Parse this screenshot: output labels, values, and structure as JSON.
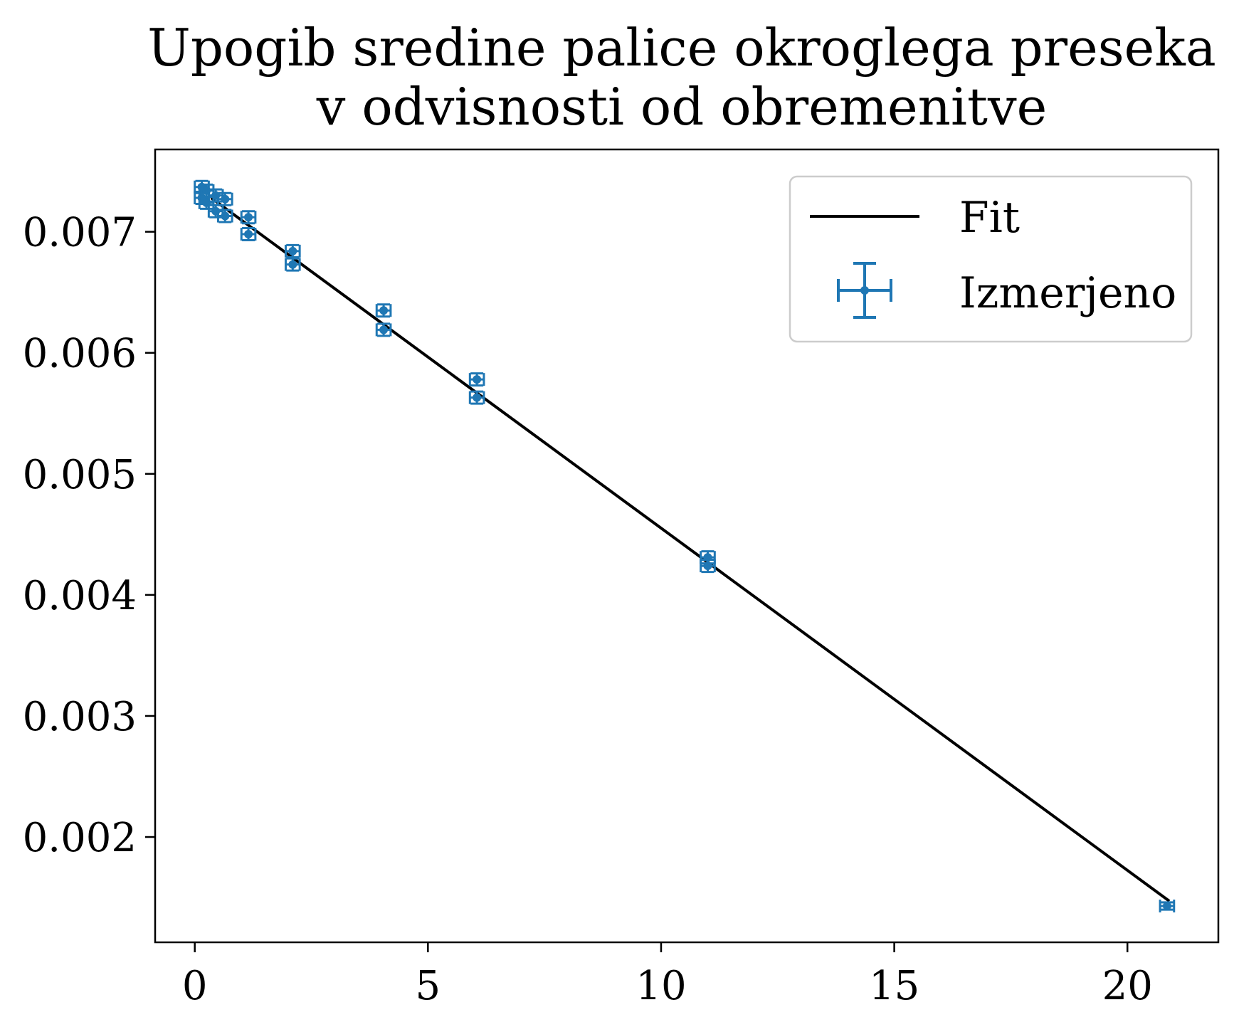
{
  "chart_data": {
    "type": "scatter",
    "title_lines": [
      "Upogib sredine palice okroglega preseka",
      "v odvisnosti od obremenitve"
    ],
    "xlabel": "",
    "ylabel": "",
    "xlim": [
      -0.85,
      21.95
    ],
    "ylim": [
      0.00113,
      0.00768
    ],
    "x_ticks": [
      0,
      5,
      10,
      15,
      20
    ],
    "x_tick_labels": [
      "0",
      "5",
      "10",
      "15",
      "20"
    ],
    "y_ticks": [
      0.002,
      0.003,
      0.004,
      0.005,
      0.006,
      0.007
    ],
    "y_tick_labels": [
      "0.002",
      "0.003",
      "0.004",
      "0.005",
      "0.006",
      "0.007"
    ],
    "grid": false,
    "legend": {
      "placement": "top-right",
      "entries": [
        "Fit",
        "Izmerjeno"
      ]
    },
    "fit": {
      "name": "Fit",
      "color": "#000000",
      "x": [
        0.35,
        20.9
      ],
      "y": [
        0.00728,
        0.00147
      ]
    },
    "measured": {
      "name": "Izmerjeno",
      "color": "#1f77b4",
      "points": [
        {
          "x": 0.15,
          "y": 0.00737,
          "xerr": 0.15,
          "yerr": 5e-05
        },
        {
          "x": 0.15,
          "y": 0.00728,
          "xerr": 0.15,
          "yerr": 5e-05
        },
        {
          "x": 0.25,
          "y": 0.00734,
          "xerr": 0.15,
          "yerr": 5e-05
        },
        {
          "x": 0.25,
          "y": 0.00724,
          "xerr": 0.15,
          "yerr": 5e-05
        },
        {
          "x": 0.45,
          "y": 0.0073,
          "xerr": 0.15,
          "yerr": 5e-05
        },
        {
          "x": 0.45,
          "y": 0.00717,
          "xerr": 0.15,
          "yerr": 5e-05
        },
        {
          "x": 0.65,
          "y": 0.00727,
          "xerr": 0.15,
          "yerr": 5e-05
        },
        {
          "x": 0.65,
          "y": 0.00713,
          "xerr": 0.15,
          "yerr": 5e-05
        },
        {
          "x": 1.15,
          "y": 0.00712,
          "xerr": 0.15,
          "yerr": 5e-05
        },
        {
          "x": 1.15,
          "y": 0.00698,
          "xerr": 0.15,
          "yerr": 5e-05
        },
        {
          "x": 2.1,
          "y": 0.00684,
          "xerr": 0.15,
          "yerr": 5e-05
        },
        {
          "x": 2.1,
          "y": 0.00673,
          "xerr": 0.15,
          "yerr": 5e-05
        },
        {
          "x": 4.05,
          "y": 0.00635,
          "xerr": 0.15,
          "yerr": 5e-05
        },
        {
          "x": 4.05,
          "y": 0.00619,
          "xerr": 0.15,
          "yerr": 5e-05
        },
        {
          "x": 6.05,
          "y": 0.00578,
          "xerr": 0.15,
          "yerr": 5e-05
        },
        {
          "x": 6.05,
          "y": 0.00563,
          "xerr": 0.15,
          "yerr": 5e-05
        },
        {
          "x": 11.0,
          "y": 0.00431,
          "xerr": 0.15,
          "yerr": 5e-05
        },
        {
          "x": 11.0,
          "y": 0.00424,
          "xerr": 0.15,
          "yerr": 5e-05
        },
        {
          "x": 20.85,
          "y": 0.00143,
          "xerr": 0.15,
          "yerr": 3e-05
        }
      ]
    }
  }
}
